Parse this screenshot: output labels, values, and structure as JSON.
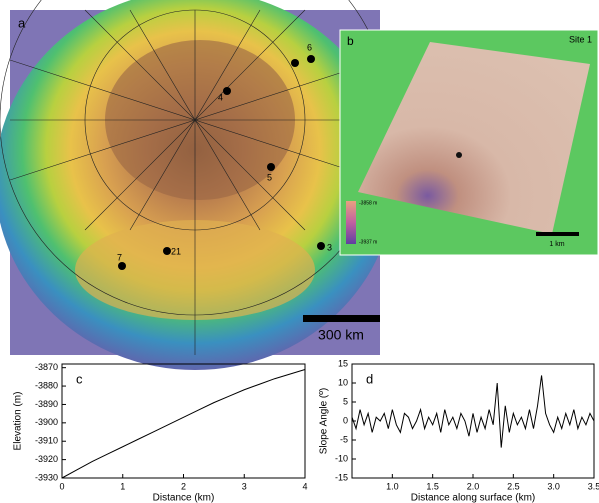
{
  "map_a": {
    "label": "a",
    "sites": [
      "1",
      "2",
      "3",
      "4",
      "5",
      "6",
      "7"
    ],
    "scale": "300 km"
  },
  "map_b": {
    "label": "b",
    "site": "Site 1",
    "legend_top": "-3858 m",
    "legend_bottom": "-3937 m",
    "scale": "1 km"
  },
  "chart_data": [
    {
      "type": "line",
      "panel_label": "c",
      "x_label": "Distance (km)",
      "y_label": "Elevation (m)",
      "x": [
        0,
        0.25,
        0.5,
        0.75,
        1,
        1.25,
        1.5,
        1.75,
        2,
        2.25,
        2.5,
        2.75,
        3,
        3.25,
        3.5,
        3.75,
        4
      ],
      "values": [
        -3930,
        -3925.5,
        -3921,
        -3917,
        -3913,
        -3909,
        -3905,
        -3901,
        -3897,
        -3893,
        -3889,
        -3885.5,
        -3882,
        -3879,
        -3876,
        -3873.5,
        -3871
      ],
      "color": "#000000",
      "xlim": [
        0,
        4
      ],
      "xticks": [
        0,
        1,
        2,
        3,
        4
      ],
      "ylim": [
        -3930,
        -3868
      ],
      "yticks": [
        -3930,
        -3920,
        -3910,
        -3900,
        -3890,
        -3880,
        -3870
      ]
    },
    {
      "type": "line",
      "panel_label": "d",
      "x_label": "Distance along surface (km)",
      "y_label": "Slope Angle (º)",
      "x": [
        0.5,
        0.55,
        0.6,
        0.65,
        0.7,
        0.75,
        0.8,
        0.85,
        0.9,
        0.95,
        1,
        1.05,
        1.1,
        1.15,
        1.2,
        1.25,
        1.3,
        1.35,
        1.4,
        1.45,
        1.5,
        1.55,
        1.6,
        1.65,
        1.7,
        1.75,
        1.8,
        1.85,
        1.9,
        1.95,
        2,
        2.05,
        2.1,
        2.15,
        2.2,
        2.25,
        2.3,
        2.35,
        2.4,
        2.45,
        2.5,
        2.55,
        2.6,
        2.65,
        2.7,
        2.75,
        2.8,
        2.85,
        2.9,
        2.95,
        3,
        3.05,
        3.1,
        3.15,
        3.2,
        3.25,
        3.3,
        3.35,
        3.4,
        3.45,
        3.5
      ],
      "values": [
        1,
        -2,
        3,
        -1,
        2,
        -3,
        1,
        0,
        2,
        -2,
        3,
        -1,
        -3,
        2,
        1,
        -2,
        0,
        3,
        -2,
        1,
        -1,
        2,
        -3,
        3,
        -1,
        1,
        -2,
        2,
        0,
        -4,
        2,
        -3,
        1,
        -2,
        3,
        -1,
        10,
        -7,
        4,
        -3,
        2,
        -1,
        1,
        -2,
        3,
        -2,
        4,
        12,
        2,
        -1,
        -3,
        1,
        -2,
        2,
        -1,
        3,
        -2,
        1,
        -1,
        2,
        0
      ],
      "color": "#000000",
      "xlim": [
        0.5,
        3.5
      ],
      "xticks": [
        {
          "value": 1,
          "label": "1.0"
        },
        1.5,
        {
          "value": 2,
          "label": "2.0"
        },
        2.5,
        {
          "value": 3,
          "label": "3.0"
        },
        3.5
      ],
      "ylim": [
        -15,
        15
      ],
      "yticks": [
        -15,
        -10,
        -5,
        0,
        5,
        10,
        15
      ]
    }
  ]
}
